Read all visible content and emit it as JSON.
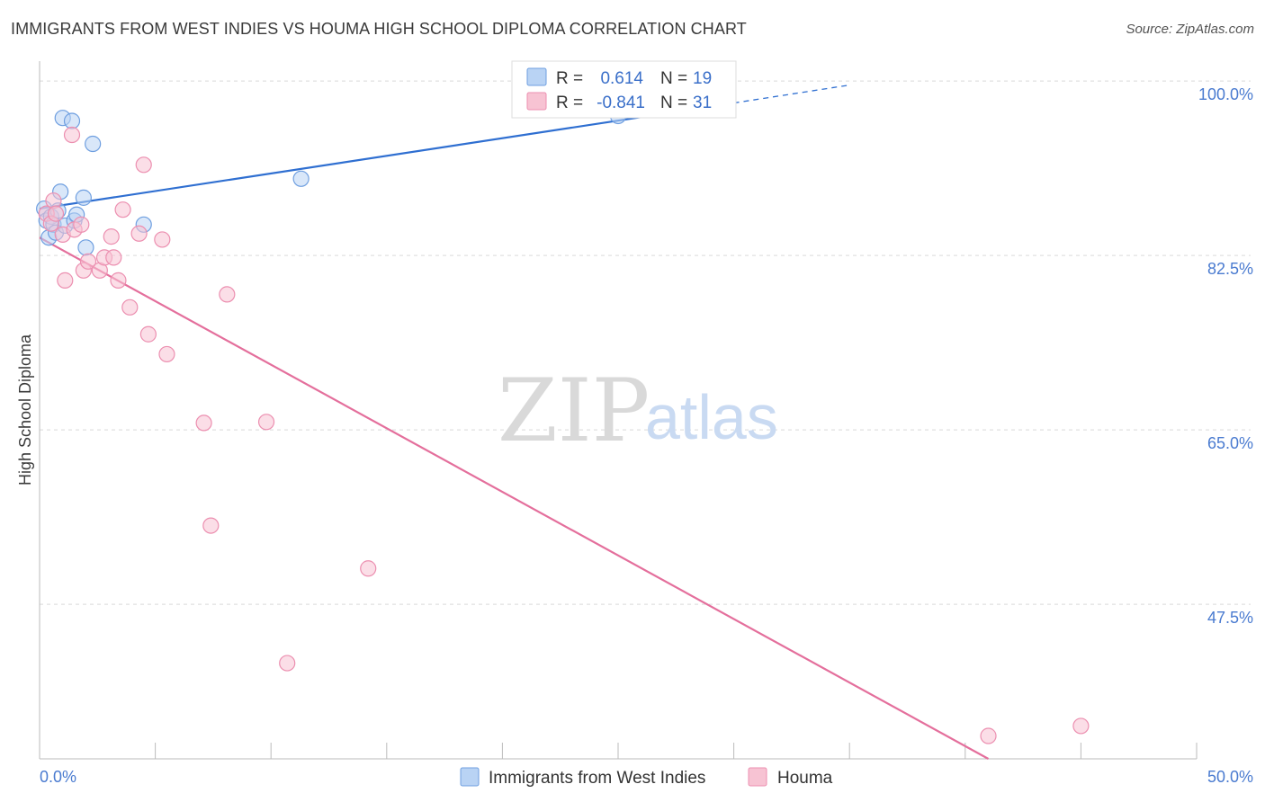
{
  "title": "IMMIGRANTS FROM WEST INDIES VS HOUMA HIGH SCHOOL DIPLOMA CORRELATION CHART",
  "source": "Source: ZipAtlas.com",
  "watermark": {
    "part1": "ZIP",
    "part2": "atlas"
  },
  "colors": {
    "blue_fill": "#b9d3f4",
    "blue_stroke": "#6f9fe0",
    "blue_line": "#2f6fd1",
    "pink_fill": "#f7c3d3",
    "pink_stroke": "#ec8fb0",
    "pink_line": "#e46f9c",
    "tick_label": "#4a7bd0",
    "grid": "#d9d9d9"
  },
  "legend": {
    "rows": [
      {
        "r_label": "R =",
        "r_value": "0.614",
        "n_label": "N =",
        "n_value": "19"
      },
      {
        "r_label": "R =",
        "r_value": "-0.841",
        "n_label": "N =",
        "n_value": "31"
      }
    ]
  },
  "chart_data": {
    "type": "scatter",
    "title": "IMMIGRANTS FROM WEST INDIES VS HOUMA HIGH SCHOOL DIPLOMA CORRELATION CHART",
    "xlabel": "",
    "ylabel": "High School Diploma",
    "xlim": [
      0,
      50
    ],
    "ylim": [
      32,
      102
    ],
    "x_tick_labels": [
      "0.0%",
      "50.0%"
    ],
    "y_ticks": [
      100.0,
      82.5,
      65.0,
      47.5
    ],
    "y_tick_labels": [
      "100.0%",
      "82.5%",
      "65.0%",
      "47.5%"
    ],
    "legend_position": "top-center",
    "series": [
      {
        "name": "Immigrants from West Indies",
        "color": "#6f9fe0",
        "r": 0.614,
        "n": 19,
        "trend": {
          "x_start": 0.0,
          "y_start": 87.2,
          "x_end": 30.0,
          "y_end": 97.8,
          "x_dash_end": 35.0,
          "y_dash_end": 99.6
        },
        "points": [
          {
            "x": 0.2,
            "y": 87.2
          },
          {
            "x": 0.3,
            "y": 86.0
          },
          {
            "x": 0.4,
            "y": 84.3
          },
          {
            "x": 0.5,
            "y": 86.4
          },
          {
            "x": 0.6,
            "y": 85.6
          },
          {
            "x": 0.7,
            "y": 84.8
          },
          {
            "x": 0.8,
            "y": 87.0
          },
          {
            "x": 0.9,
            "y": 88.9
          },
          {
            "x": 1.0,
            "y": 96.3
          },
          {
            "x": 1.1,
            "y": 85.5
          },
          {
            "x": 1.4,
            "y": 96.0
          },
          {
            "x": 1.5,
            "y": 86.0
          },
          {
            "x": 1.6,
            "y": 86.6
          },
          {
            "x": 1.9,
            "y": 88.3
          },
          {
            "x": 2.0,
            "y": 83.3
          },
          {
            "x": 2.3,
            "y": 93.7
          },
          {
            "x": 4.5,
            "y": 85.6
          },
          {
            "x": 11.3,
            "y": 90.2
          },
          {
            "x": 25.0,
            "y": 96.5
          }
        ]
      },
      {
        "name": "Houma",
        "color": "#ec8fb0",
        "r": -0.841,
        "n": 31,
        "trend": {
          "x_start": 0.0,
          "y_start": 84.3,
          "x_end": 41.0,
          "y_end": 32.0
        },
        "points": [
          {
            "x": 0.3,
            "y": 86.7
          },
          {
            "x": 0.5,
            "y": 85.7
          },
          {
            "x": 0.6,
            "y": 88.0
          },
          {
            "x": 0.7,
            "y": 86.7
          },
          {
            "x": 1.0,
            "y": 84.6
          },
          {
            "x": 1.1,
            "y": 80.0
          },
          {
            "x": 1.4,
            "y": 94.6
          },
          {
            "x": 1.5,
            "y": 85.1
          },
          {
            "x": 1.8,
            "y": 85.6
          },
          {
            "x": 1.9,
            "y": 81.0
          },
          {
            "x": 2.1,
            "y": 81.9
          },
          {
            "x": 2.6,
            "y": 81.0
          },
          {
            "x": 2.8,
            "y": 82.3
          },
          {
            "x": 3.1,
            "y": 84.4
          },
          {
            "x": 3.2,
            "y": 82.3
          },
          {
            "x": 3.4,
            "y": 80.0
          },
          {
            "x": 3.6,
            "y": 87.1
          },
          {
            "x": 3.9,
            "y": 77.3
          },
          {
            "x": 4.3,
            "y": 84.7
          },
          {
            "x": 4.5,
            "y": 91.6
          },
          {
            "x": 4.7,
            "y": 74.6
          },
          {
            "x": 5.3,
            "y": 84.1
          },
          {
            "x": 5.5,
            "y": 72.6
          },
          {
            "x": 7.1,
            "y": 65.7
          },
          {
            "x": 7.4,
            "y": 55.4
          },
          {
            "x": 8.1,
            "y": 78.6
          },
          {
            "x": 9.8,
            "y": 65.8
          },
          {
            "x": 10.7,
            "y": 41.6
          },
          {
            "x": 14.2,
            "y": 51.1
          },
          {
            "x": 41.0,
            "y": 34.3
          },
          {
            "x": 45.0,
            "y": 35.3
          }
        ]
      }
    ]
  }
}
